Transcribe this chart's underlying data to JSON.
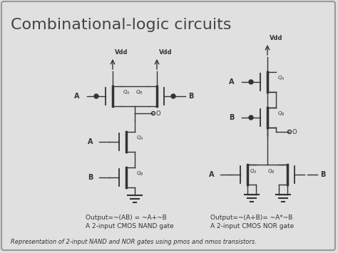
{
  "title": "Combinational-logic circuits",
  "bg_color": "#e0e0e0",
  "line_color": "#333333",
  "title_fontsize": 16,
  "caption": "Representation of 2-input NAND and NOR gates using pmos and nmos transistors.",
  "nand_label1": "Output=~(AB) = ~A+~B",
  "nand_label2": "A 2-input CMOS NAND gate",
  "nor_label1": "Output=~(A+B)= ~A*~B",
  "nor_label2": "A 2-input CMOS NOR gate"
}
